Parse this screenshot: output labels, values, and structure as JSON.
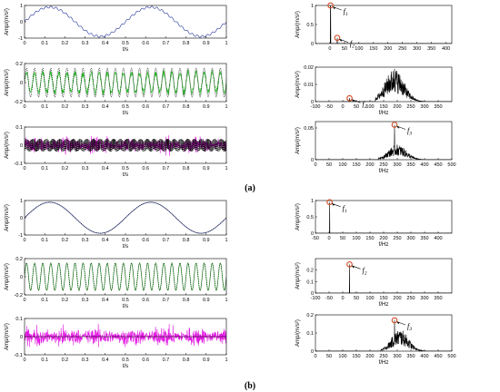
{
  "panel_labels": {
    "a": "(a)",
    "b": "(b)"
  },
  "colors": {
    "blue_signal": "#1f2f9a",
    "green_signal": "#27c027",
    "magenta_signal": "#e21ae2",
    "spectrum": "#000000",
    "marker": "#d04a25",
    "reference_dotted": "#000000"
  },
  "chart_data": [
    {
      "id": "a-t1",
      "group": "a",
      "type": "line",
      "title": "",
      "xlabel": "t/s",
      "ylabel": "Amp/(m/s²)",
      "xlim": [
        0,
        1
      ],
      "ylim": [
        -1,
        1
      ],
      "xticks": [
        "0",
        "0.1",
        "0.2",
        "0.3",
        "0.4",
        "0.5",
        "0.6",
        "0.7",
        "0.8",
        "0.9",
        "1"
      ],
      "yticks": [
        "1",
        "0",
        "-1"
      ],
      "series": [
        {
          "kind": "sine",
          "freq_hz": 2,
          "amplitude": 0.9,
          "ripple_freq_hz": 40,
          "ripple_amplitude": 0.06,
          "color_key": "blue_signal",
          "style": "solid"
        }
      ]
    },
    {
      "id": "a-t2",
      "group": "a",
      "type": "line",
      "title": "",
      "xlabel": "t/s",
      "ylabel": "Amp/(m/s²)",
      "xlim": [
        0,
        1
      ],
      "ylim": [
        -0.2,
        0.2
      ],
      "xticks": [
        "0",
        "0.1",
        "0.2",
        "0.3",
        "0.4",
        "0.5",
        "0.6",
        "0.7",
        "0.8",
        "0.9",
        "1"
      ],
      "yticks": [
        "0.2",
        "0",
        "-0.2"
      ],
      "series": [
        {
          "kind": "noisy_sine",
          "freq_hz": 25,
          "amplitude": 0.1,
          "noise": 0.05,
          "color_key": "green_signal",
          "style": "solid"
        },
        {
          "kind": "sine",
          "freq_hz": 25,
          "amplitude": 0.15,
          "color_key": "reference_dotted",
          "style": "dotted"
        }
      ]
    },
    {
      "id": "a-t3",
      "group": "a",
      "type": "line",
      "title": "",
      "xlabel": "t/s",
      "ylabel": "Amp/(m/s²)",
      "xlim": [
        0,
        1
      ],
      "ylim": [
        -0.1,
        0.1
      ],
      "xticks": [
        "0",
        "0.1",
        "0.2",
        "0.3",
        "0.4",
        "0.5",
        "0.6",
        "0.7",
        "0.8",
        "0.9",
        "1"
      ],
      "yticks": [
        "0.1",
        "0",
        "-0.1"
      ],
      "series": [
        {
          "kind": "noise",
          "amplitude": 0.05,
          "burst": true,
          "color_key": "magenta_signal",
          "style": "solid"
        },
        {
          "kind": "sine",
          "freq_hz": 290,
          "amplitude": 0.035,
          "color_key": "reference_dotted",
          "style": "dotted"
        }
      ]
    },
    {
      "id": "a-f1",
      "group": "a",
      "type": "line",
      "title": "",
      "xlabel": "",
      "ylabel": "Amp/(m/s²)",
      "xlim": [
        -50,
        420
      ],
      "ylim": [
        0,
        1
      ],
      "xticks": [
        "0",
        "50",
        "100",
        "150",
        "200",
        "250",
        "300",
        "350",
        "400"
      ],
      "yticks": [
        "1",
        "0.5",
        "0"
      ],
      "spectrum": {
        "peaks": [
          [
            2,
            1.0
          ],
          [
            25,
            0.15
          ]
        ]
      },
      "markers": [
        {
          "x": 2,
          "y": 1.0,
          "label": "f",
          "sub": "1"
        },
        {
          "x": 25,
          "y": 0.15,
          "label": "f",
          "sub": "2"
        }
      ]
    },
    {
      "id": "a-f2",
      "group": "a",
      "type": "line",
      "title": "",
      "xlabel": "f/Hz",
      "ylabel": "Amp/(m/s²)",
      "xlim": [
        -100,
        400
      ],
      "ylim": [
        0,
        0.02
      ],
      "xticks": [
        "-100",
        "-50",
        "0",
        "50",
        "100",
        "150",
        "200",
        "250",
        "300",
        "350"
      ],
      "yticks": [
        "0.02",
        "0.01",
        "0"
      ],
      "spectrum": {
        "peaks": [
          [
            25,
            0.002
          ],
          [
            190,
            0.019
          ]
        ],
        "band": [
          120,
          300
        ],
        "band_peak": 190,
        "band_level": 0.016
      },
      "markers": [
        {
          "x": 25,
          "y": 0.002,
          "label": "f",
          "sub": "2"
        }
      ]
    },
    {
      "id": "a-f3",
      "group": "a",
      "type": "line",
      "title": "",
      "xlabel": "f/Hz",
      "ylabel": "Amp/(m/s²)",
      "xlim": [
        0,
        500
      ],
      "ylim": [
        0,
        0.06
      ],
      "xticks": [
        "0",
        "50",
        "100",
        "150",
        "200",
        "250",
        "300",
        "350",
        "400",
        "450",
        "500"
      ],
      "yticks": [
        "0.05",
        "0"
      ],
      "spectrum": {
        "peaks": [
          [
            290,
            0.055
          ]
        ],
        "band": [
          230,
          400
        ],
        "band_peak": 300,
        "band_level": 0.02
      },
      "markers": [
        {
          "x": 290,
          "y": 0.055,
          "label": "f",
          "sub": "3"
        }
      ]
    },
    {
      "id": "b-t1",
      "group": "b",
      "type": "line",
      "title": "",
      "xlabel": "t/s",
      "ylabel": "Amp/(m/s²)",
      "xlim": [
        0,
        1
      ],
      "ylim": [
        -1,
        1
      ],
      "xticks": [
        "0",
        "0.1",
        "0.2",
        "0.3",
        "0.4",
        "0.5",
        "0.6",
        "0.7",
        "0.8",
        "0.9",
        "1"
      ],
      "yticks": [
        "1",
        "0",
        "-1"
      ],
      "series": [
        {
          "kind": "sine",
          "freq_hz": 2,
          "amplitude": 0.9,
          "color_key": "blue_signal",
          "style": "solid"
        },
        {
          "kind": "sine",
          "freq_hz": 2,
          "amplitude": 0.9,
          "color_key": "reference_dotted",
          "style": "dotted"
        }
      ]
    },
    {
      "id": "b-t2",
      "group": "b",
      "type": "line",
      "title": "",
      "xlabel": "t/s",
      "ylabel": "Amp/(m/s²)",
      "xlim": [
        0,
        1
      ],
      "ylim": [
        -0.2,
        0.2
      ],
      "xticks": [
        "0",
        "0.1",
        "0.2",
        "0.3",
        "0.4",
        "0.5",
        "0.6",
        "0.7",
        "0.8",
        "0.9",
        "1"
      ],
      "yticks": [
        "0.2",
        "0",
        "-0.2"
      ],
      "series": [
        {
          "kind": "sine",
          "freq_hz": 25,
          "amplitude": 0.15,
          "color_key": "green_signal",
          "style": "solid"
        },
        {
          "kind": "sine",
          "freq_hz": 25,
          "amplitude": 0.15,
          "color_key": "reference_dotted",
          "style": "dotted"
        }
      ]
    },
    {
      "id": "b-t3",
      "group": "b",
      "type": "line",
      "title": "",
      "xlabel": "t/s",
      "ylabel": "Amp/(m/s²)",
      "xlim": [
        0,
        1
      ],
      "ylim": [
        -0.1,
        0.1
      ],
      "xticks": [
        "0",
        "0.1",
        "0.2",
        "0.3",
        "0.4",
        "0.5",
        "0.6",
        "0.7",
        "0.8",
        "0.9",
        "1"
      ],
      "yticks": [
        "0.1",
        "0",
        "-0.1"
      ],
      "series": [
        {
          "kind": "noise",
          "amplitude": 0.06,
          "burst": true,
          "color_key": "magenta_signal",
          "style": "solid"
        },
        {
          "kind": "flat",
          "color_key": "reference_dotted",
          "style": "solid"
        }
      ]
    },
    {
      "id": "b-f1",
      "group": "b",
      "type": "line",
      "title": "",
      "xlabel": "f/Hz",
      "ylabel": "Amp/(m/s²)",
      "xlim": [
        -50,
        450
      ],
      "ylim": [
        0,
        1
      ],
      "xticks": [
        "-50",
        "0",
        "50",
        "100",
        "150",
        "200",
        "250",
        "300",
        "350",
        "400"
      ],
      "yticks": [
        "1",
        "0.5",
        "0"
      ],
      "spectrum": {
        "peaks": [
          [
            2,
            0.95
          ]
        ]
      },
      "markers": [
        {
          "x": 2,
          "y": 0.95,
          "label": "f",
          "sub": "1"
        }
      ]
    },
    {
      "id": "b-f2",
      "group": "b",
      "type": "line",
      "title": "",
      "xlabel": "f/Hz",
      "ylabel": "Amp/(m/s²)",
      "xlim": [
        -100,
        400
      ],
      "ylim": [
        0,
        0.3
      ],
      "xticks": [
        "-100",
        "-50",
        "0",
        "50",
        "100",
        "150",
        "200",
        "250",
        "300",
        "350"
      ],
      "yticks": [
        "0.2",
        "0.1",
        "0"
      ],
      "spectrum": {
        "peaks": [
          [
            25,
            0.25
          ]
        ]
      },
      "markers": [
        {
          "x": 25,
          "y": 0.25,
          "label": "f",
          "sub": "2"
        }
      ]
    },
    {
      "id": "b-f3",
      "group": "b",
      "type": "line",
      "title": "",
      "xlabel": "f/Hz",
      "ylabel": "Amp/(m/s²)",
      "xlim": [
        0,
        500
      ],
      "ylim": [
        0,
        0.2
      ],
      "xticks": [
        "0",
        "50",
        "100",
        "150",
        "200",
        "250",
        "300",
        "350",
        "400",
        "450",
        "500"
      ],
      "yticks": [
        "0.2",
        "0.1",
        "0"
      ],
      "spectrum": {
        "peaks": [
          [
            290,
            0.17
          ]
        ],
        "band": [
          240,
          400
        ],
        "band_peak": 310,
        "band_level": 0.1
      },
      "markers": [
        {
          "x": 290,
          "y": 0.17,
          "label": "f",
          "sub": "3"
        }
      ]
    }
  ]
}
